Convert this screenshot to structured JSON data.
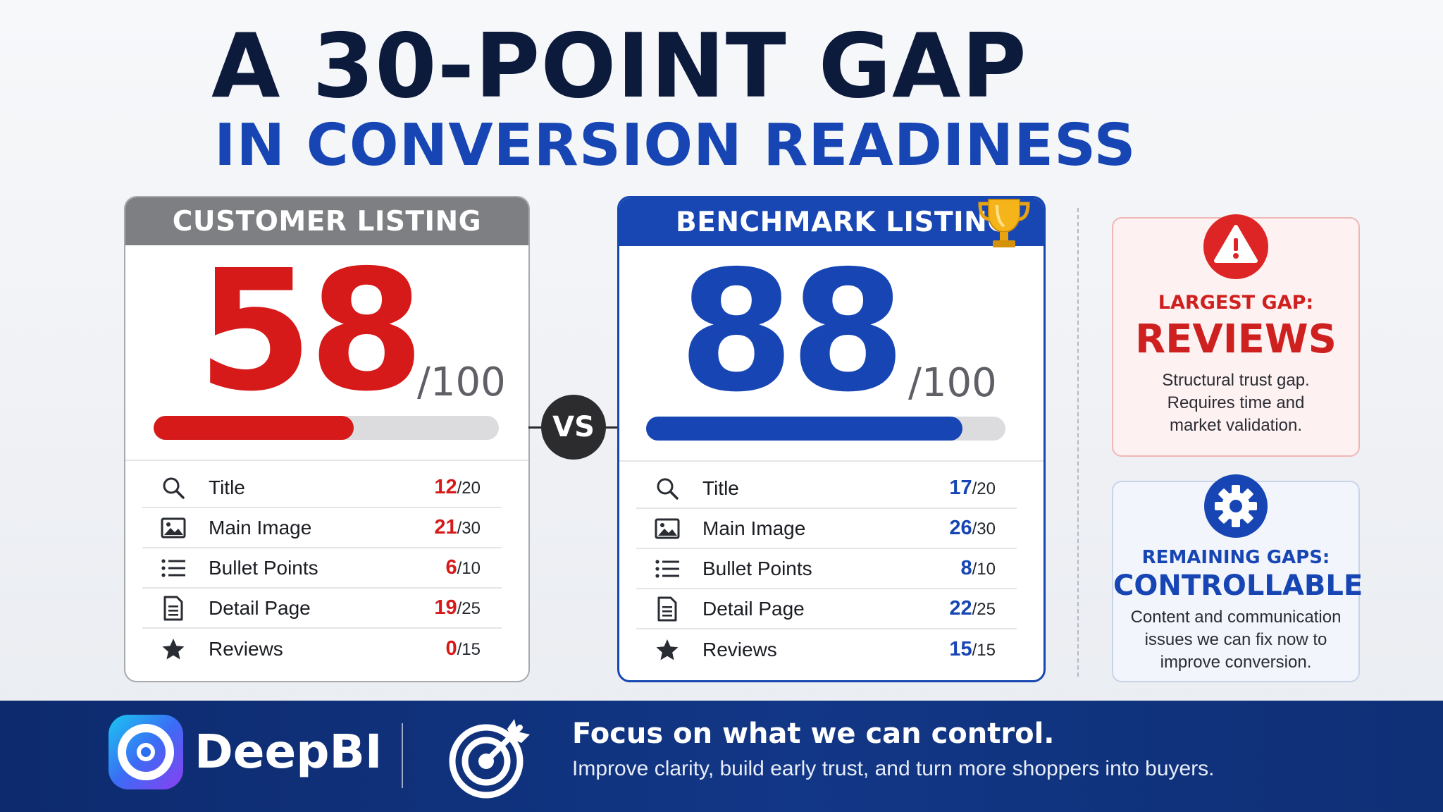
{
  "headline": {
    "line1": "A 30-POINT GAP",
    "line2": "IN CONVERSION READINESS"
  },
  "customer": {
    "header": "CUSTOMER LISTING",
    "score": "58",
    "out_of": "/100",
    "progress": 0.58,
    "rows": [
      {
        "icon": "search-icon",
        "label": "Title",
        "score": "12",
        "max": "/20"
      },
      {
        "icon": "image-icon",
        "label": "Main Image",
        "score": "21",
        "max": "/30"
      },
      {
        "icon": "list-icon",
        "label": "Bullet Points",
        "score": "6",
        "max": "/10"
      },
      {
        "icon": "document-icon",
        "label": "Detail Page",
        "score": "19",
        "max": "/25"
      },
      {
        "icon": "star-icon",
        "label": "Reviews",
        "score": "0",
        "max": "/15"
      }
    ]
  },
  "benchmark": {
    "header": "BENCHMARK LISTING",
    "score": "88",
    "out_of": "/100",
    "progress": 0.88,
    "rows": [
      {
        "icon": "search-icon",
        "label": "Title",
        "score": "17",
        "max": "/20"
      },
      {
        "icon": "image-icon",
        "label": "Main Image",
        "score": "26",
        "max": "/30"
      },
      {
        "icon": "list-icon",
        "label": "Bullet Points",
        "score": "8",
        "max": "/10"
      },
      {
        "icon": "document-icon",
        "label": "Detail Page",
        "score": "22",
        "max": "/25"
      },
      {
        "icon": "star-icon",
        "label": "Reviews",
        "score": "15",
        "max": "/15"
      }
    ]
  },
  "vs": "VS",
  "largest_gap": {
    "kicker": "LARGEST GAP:",
    "title": "REVIEWS",
    "body": [
      "Structural trust gap.",
      "Requires time and",
      "market validation."
    ]
  },
  "remaining": {
    "kicker": "REMAINING GAPS:",
    "title": "CONTROLLABLE",
    "body": [
      "Content and communication",
      "issues we can fix now to",
      "improve conversion."
    ]
  },
  "footer": {
    "brand": "DeepBI",
    "title": "Focus on what we can control.",
    "subtitle": "Improve clarity, build early trust, and turn more shoppers into buyers."
  },
  "colors": {
    "red": "#d61a1a",
    "blue": "#1746b4",
    "navy": "#0c1a3c",
    "gray_header": "#7e7f82"
  }
}
